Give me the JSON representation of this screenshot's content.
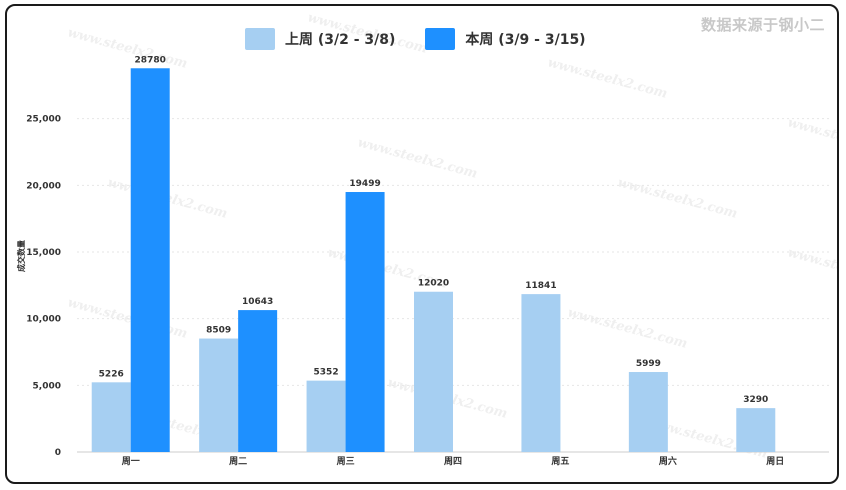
{
  "source_note": "数据来源于钢小二",
  "chart_data": {
    "type": "bar",
    "categories": [
      "周一",
      "周二",
      "周三",
      "周四",
      "周五",
      "周六",
      "周日"
    ],
    "series": [
      {
        "name": "上周 (3/2 - 3/8)",
        "color": "#a6cff2",
        "values": [
          5226,
          8509,
          5352,
          12020,
          11841,
          5999,
          3290
        ]
      },
      {
        "name": "本周 (3/9 - 3/15)",
        "color": "#1e90ff",
        "values": [
          28780,
          10643,
          19499,
          null,
          null,
          null,
          null
        ]
      }
    ],
    "ylabel": "成交数量",
    "ylim": [
      0,
      30000
    ],
    "yticks": [
      0,
      5000,
      10000,
      15000,
      20000,
      25000
    ],
    "ytick_labels": [
      "0",
      "5,000",
      "10,000",
      "15,000",
      "20,000",
      "25,000"
    ],
    "grid": true,
    "legend_position": "top",
    "watermark": "www.steelx2.com"
  }
}
